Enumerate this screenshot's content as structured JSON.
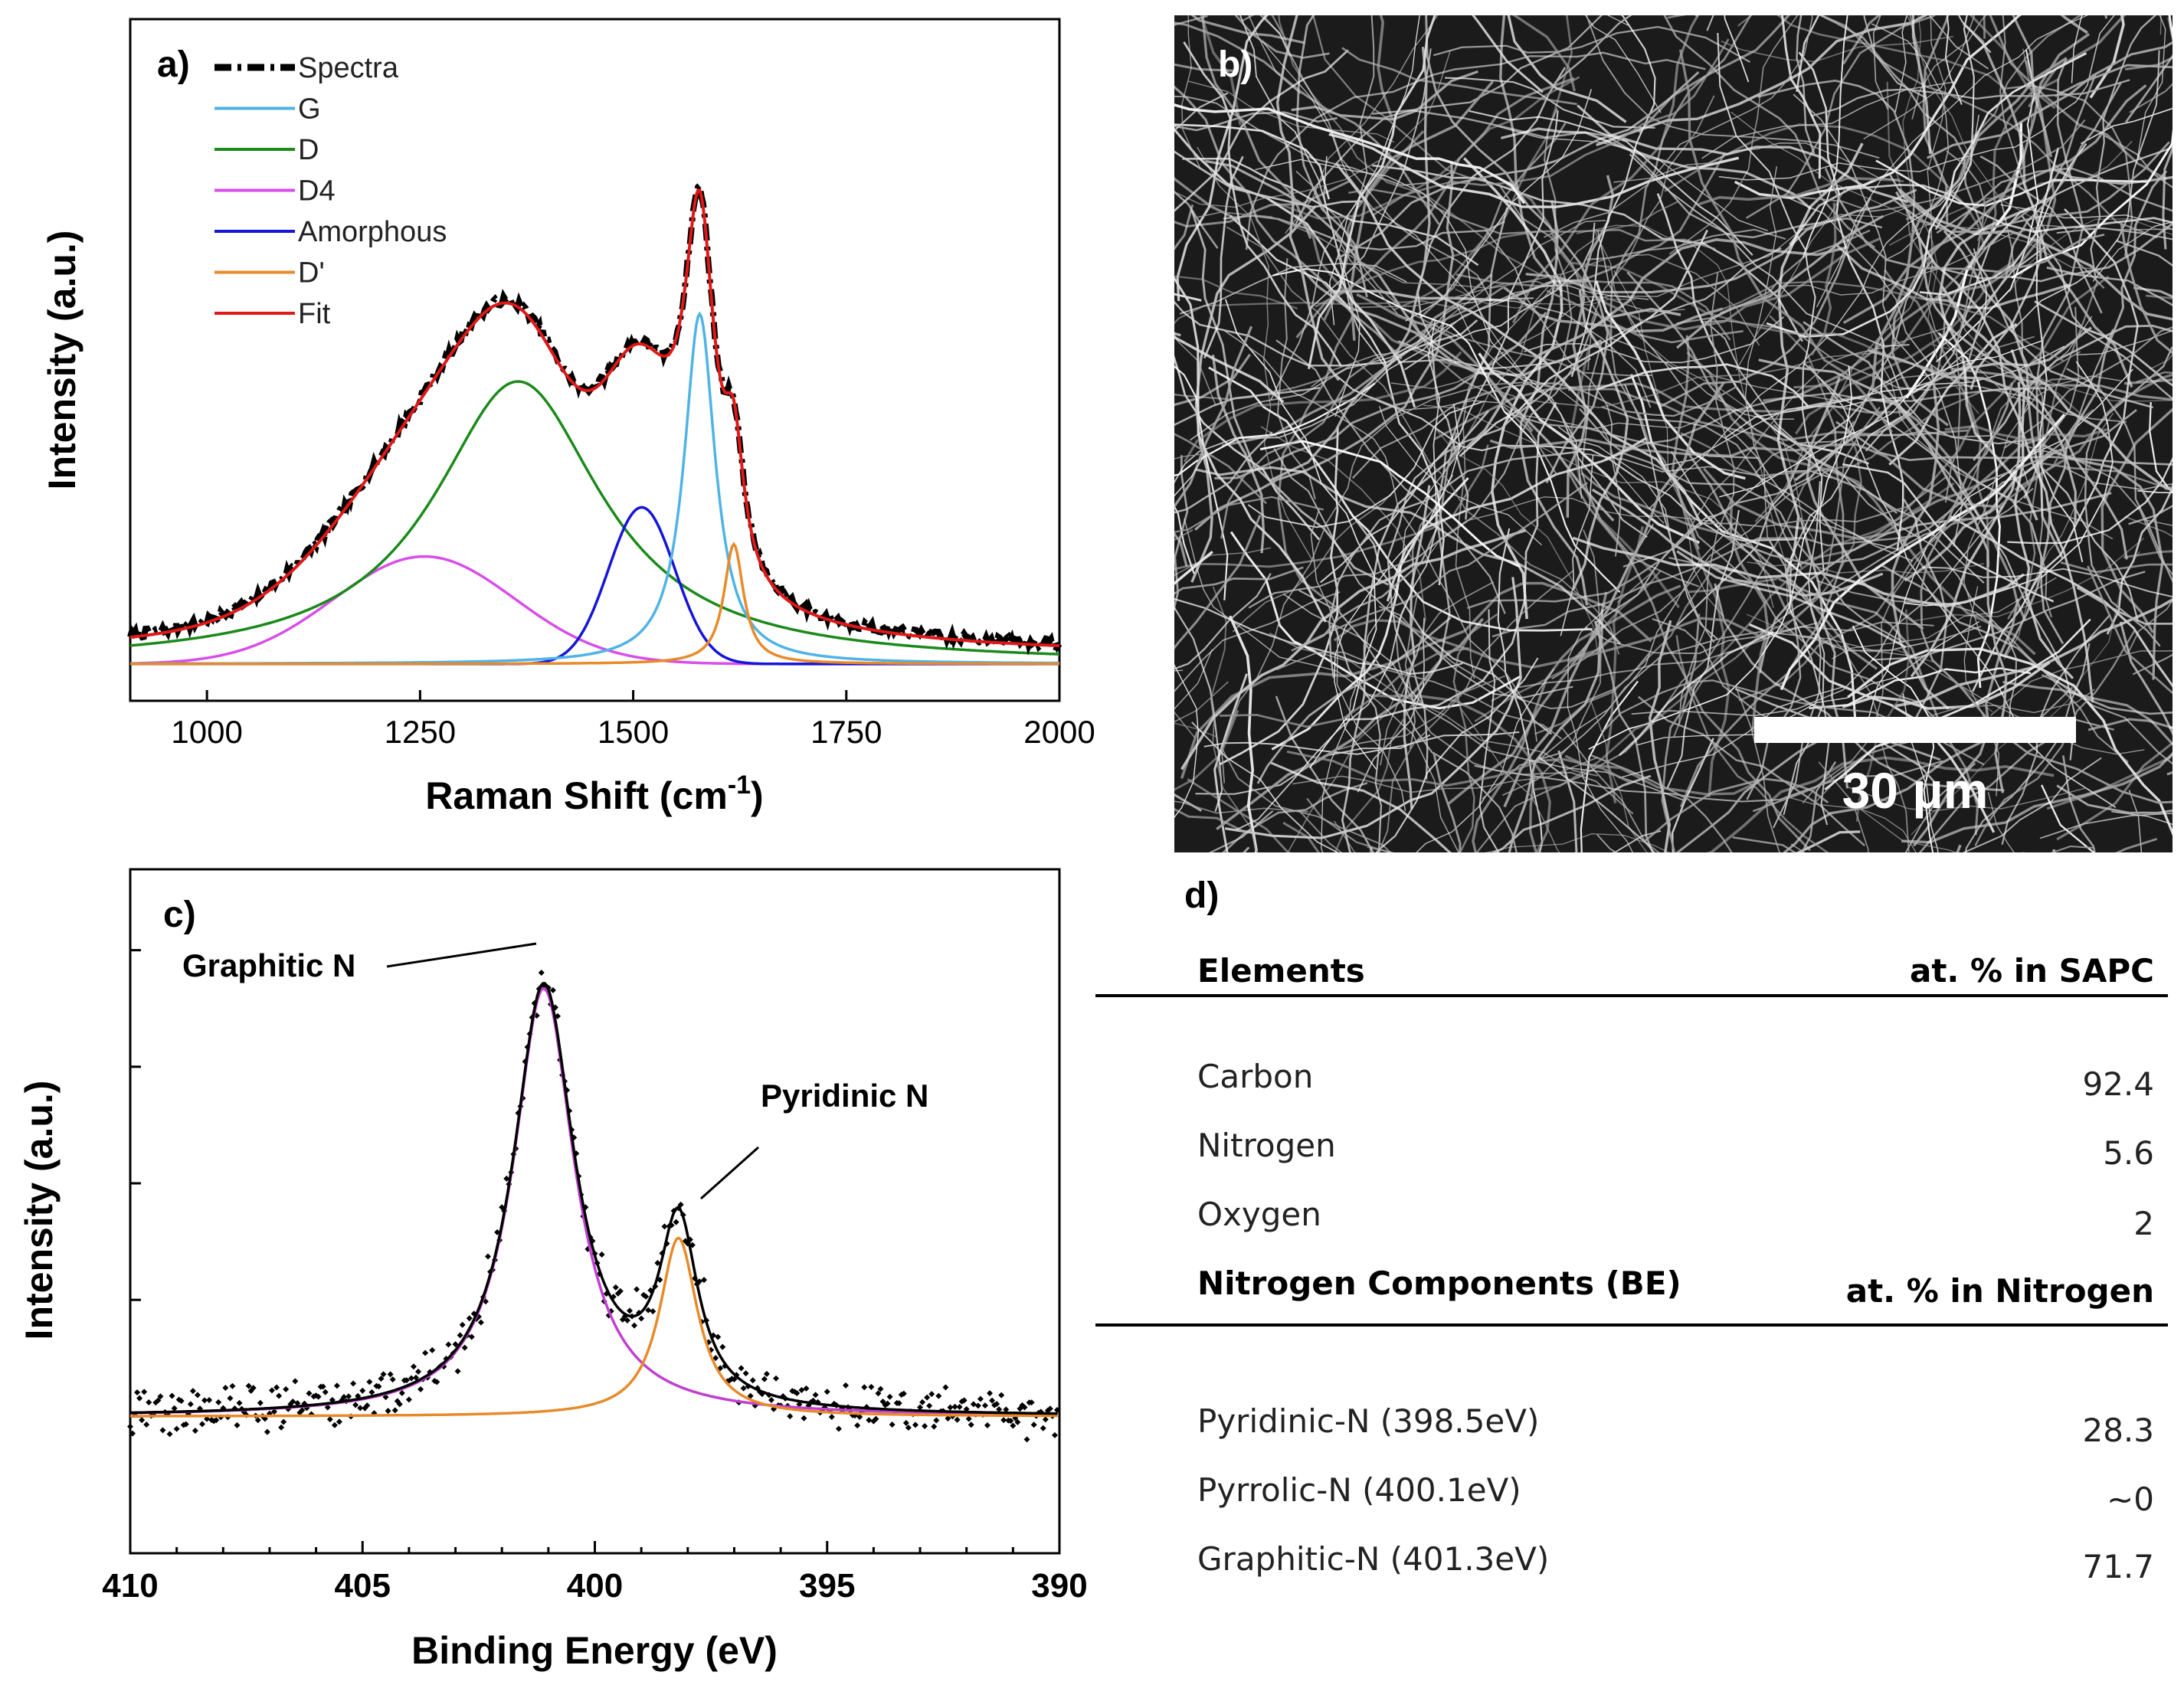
{
  "colors": {
    "spectra": "#000000",
    "G": "#4fb3e6",
    "D": "#1a8a1a",
    "D4": "#d84ee8",
    "amorphous": "#1515d8",
    "Dprime": "#e88a2a",
    "fit": "#e01818",
    "xps_fit": "#000000",
    "graphitic": "#c040d0",
    "pyridinic": "#e88a2a"
  },
  "chart_data": [
    {
      "panel": "a)",
      "type": "line",
      "title": "",
      "xlabel": "Raman Shift (cm",
      "xlabel_sup": "-1",
      "xlabel_close": ")",
      "ylabel": "Intensity (a.u.)",
      "xlim": [
        910,
        2000
      ],
      "ylim": [
        -0.06,
        1.05
      ],
      "xticks": [
        "1000",
        "1250",
        "1500",
        "1750",
        "2000"
      ],
      "xtick_values": [
        1000,
        1250,
        1500,
        1750,
        2000
      ],
      "legend_position": "top-left",
      "legend": [
        "Spectra",
        "G",
        "D",
        "D4",
        "Amorphous",
        "D'",
        "Fit"
      ],
      "peaks": [
        {
          "name": "G",
          "center": 1578,
          "height": 0.57,
          "width": 22,
          "shape": "lorentzian"
        },
        {
          "name": "D",
          "center": 1365,
          "height": 0.46,
          "width": 120,
          "shape": "lorentzian"
        },
        {
          "name": "D4",
          "center": 1255,
          "height": 0.175,
          "width": 150,
          "shape": "gaussian"
        },
        {
          "name": "Amorphous",
          "center": 1510,
          "height": 0.255,
          "width": 55,
          "shape": "gaussian"
        },
        {
          "name": "D'",
          "center": 1618,
          "height": 0.195,
          "width": 14,
          "shape": "lorentzian"
        }
      ]
    },
    {
      "panel": "c)",
      "type": "scatter",
      "title": "",
      "xlabel": "Binding Energy (eV)",
      "ylabel": "Intensity (a.u.)",
      "xlim": [
        410,
        390
      ],
      "ylim": [
        -0.23,
        0.92
      ],
      "xticks": [
        "410",
        "405",
        "400",
        "395",
        "390"
      ],
      "xtick_values": [
        410,
        405,
        400,
        395,
        390
      ],
      "annotations": [
        "Graphitic N",
        "Pyridinic N"
      ],
      "peaks": [
        {
          "name": "Graphitic N",
          "center": 401.1,
          "height": 0.72,
          "width": 0.8
        },
        {
          "name": "Pyridinic N",
          "center": 398.2,
          "height": 0.3,
          "width": 0.5
        }
      ]
    }
  ],
  "sem": {
    "panel": "b)",
    "scale_label": "30 μm"
  },
  "table": {
    "panel": "d)",
    "header1": [
      "Elements",
      "at. % in SAPC"
    ],
    "rows1": [
      [
        "Carbon",
        "92.4"
      ],
      [
        "Nitrogen",
        "5.6"
      ],
      [
        "Oxygen",
        "2"
      ]
    ],
    "header2": [
      "Nitrogen Components (BE)",
      "at. % in Nitrogen"
    ],
    "rows2": [
      [
        "Pyridinic-N (398.5eV)",
        "28.3"
      ],
      [
        "Pyrrolic-N (400.1eV)",
        "~0"
      ],
      [
        "Graphitic-N (401.3eV)",
        "71.7"
      ]
    ]
  }
}
